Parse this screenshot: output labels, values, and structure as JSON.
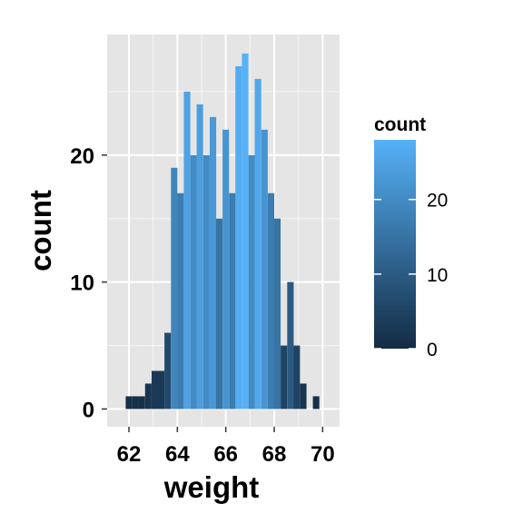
{
  "chart_data": {
    "type": "bar",
    "xlabel": "weight",
    "ylabel": "count",
    "xlim": [
      61.1,
      70.7
    ],
    "ylim": [
      -1.4,
      29.5
    ],
    "x_ticks": [
      62,
      64,
      66,
      68,
      70
    ],
    "y_ticks": [
      0,
      10,
      20
    ],
    "bin_width": 0.267,
    "bins": [
      {
        "x": 62.0,
        "count": 1
      },
      {
        "x": 62.27,
        "count": 1
      },
      {
        "x": 62.53,
        "count": 1
      },
      {
        "x": 62.8,
        "count": 2
      },
      {
        "x": 63.07,
        "count": 3
      },
      {
        "x": 63.33,
        "count": 3
      },
      {
        "x": 63.6,
        "count": 6
      },
      {
        "x": 63.87,
        "count": 19
      },
      {
        "x": 64.13,
        "count": 17
      },
      {
        "x": 64.4,
        "count": 25
      },
      {
        "x": 64.67,
        "count": 20
      },
      {
        "x": 64.93,
        "count": 24
      },
      {
        "x": 65.2,
        "count": 20
      },
      {
        "x": 65.47,
        "count": 23
      },
      {
        "x": 65.73,
        "count": 15
      },
      {
        "x": 66.0,
        "count": 22
      },
      {
        "x": 66.27,
        "count": 17
      },
      {
        "x": 66.53,
        "count": 27
      },
      {
        "x": 66.8,
        "count": 28
      },
      {
        "x": 67.07,
        "count": 20
      },
      {
        "x": 67.33,
        "count": 26
      },
      {
        "x": 67.6,
        "count": 22
      },
      {
        "x": 67.87,
        "count": 17
      },
      {
        "x": 68.13,
        "count": 15
      },
      {
        "x": 68.4,
        "count": 5
      },
      {
        "x": 68.67,
        "count": 10
      },
      {
        "x": 68.93,
        "count": 5
      },
      {
        "x": 69.2,
        "count": 2
      },
      {
        "x": 69.47,
        "count": 0
      },
      {
        "x": 69.73,
        "count": 1
      }
    ],
    "colors": {
      "panel_background": "#E5E5E5",
      "grid_line": "#FFFFFF",
      "fill_low": "#132B43",
      "fill_high": "#56B1F7"
    },
    "legend": {
      "title": "count",
      "placement": "right",
      "range": [
        0,
        28
      ],
      "labels": [
        0,
        10,
        20
      ]
    }
  }
}
